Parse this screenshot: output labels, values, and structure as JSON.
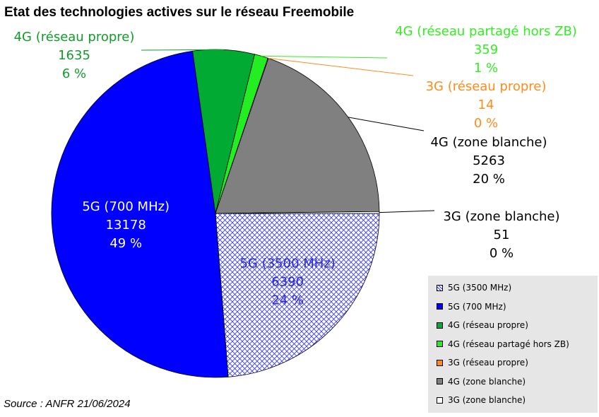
{
  "chart_data": {
    "type": "pie",
    "title": "Etat des technologies actives sur le réseau Freemobile",
    "source": "Source : ANFR 21/06/2024",
    "slices": [
      {
        "name": "5G (3500 MHz)",
        "value": 6390,
        "percent": "24 %",
        "color": "#3333ff",
        "pattern": "crosshatch"
      },
      {
        "name": "5G (700 MHz)",
        "value": 13178,
        "percent": "49 %",
        "color": "#0000ff",
        "pattern": "solid"
      },
      {
        "name": "4G (réseau propre)",
        "value": 1635,
        "percent": "6 %",
        "color": "#00aa33",
        "pattern": "solid"
      },
      {
        "name": "4G (réseau partagé hors ZB)",
        "value": 359,
        "percent": "1 %",
        "color": "#22ee22",
        "pattern": "solid"
      },
      {
        "name": "3G (réseau propre)",
        "value": 14,
        "percent": "0 %",
        "color": "#ff8c1a",
        "pattern": "solid"
      },
      {
        "name": "4G (zone blanche)",
        "value": 5263,
        "percent": "20 %",
        "color": "#808080",
        "pattern": "solid"
      },
      {
        "name": "3G (zone blanche)",
        "value": 51,
        "percent": "0 %",
        "color": "#ffffff",
        "pattern": "solid"
      }
    ],
    "label_colors": {
      "5G (3500 MHz)": "#2a2ae0",
      "5G (700 MHz)": "#ffffff",
      "4G (réseau propre)": "#129c2c",
      "4G (réseau partagé hors ZB)": "#33ee22",
      "3G (réseau propre)": "#ff8c1a",
      "4G (zone blanche)": "#000000",
      "3G (zone blanche)": "#000000"
    },
    "legend": {
      "position": "bottom-right",
      "entries": [
        "5G (3500 MHz)",
        "5G (700 MHz)",
        "4G (réseau propre)",
        "4G (réseau partagé hors ZB)",
        "3G (réseau propre)",
        "4G (zone blanche)",
        "3G (zone blanche)"
      ]
    }
  }
}
